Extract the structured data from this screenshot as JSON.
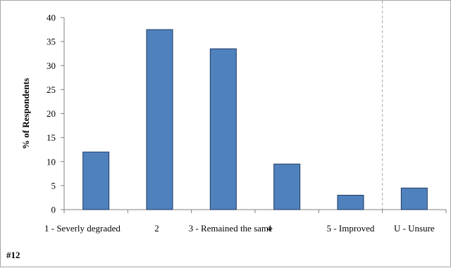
{
  "figure_label": "#12",
  "chart_data": {
    "type": "bar",
    "categories": [
      "1 - Severly degraded",
      "2",
      "3 - Remained the same",
      "4",
      "5 - Improved",
      "U - Unsure"
    ],
    "values": [
      12,
      37.5,
      33.5,
      9.5,
      3,
      4.5
    ],
    "ylabel": "% of Respondents",
    "xlabel": "",
    "ylim": [
      0,
      40
    ],
    "yticks": [
      0,
      5,
      10,
      15,
      20,
      25,
      30,
      35,
      40
    ],
    "grid": false,
    "separator_before_category": "U - Unsure",
    "colors": {
      "bar_fill": "#4f81bd",
      "bar_stroke": "#1f3864",
      "separator": "#a6a6a6"
    }
  }
}
